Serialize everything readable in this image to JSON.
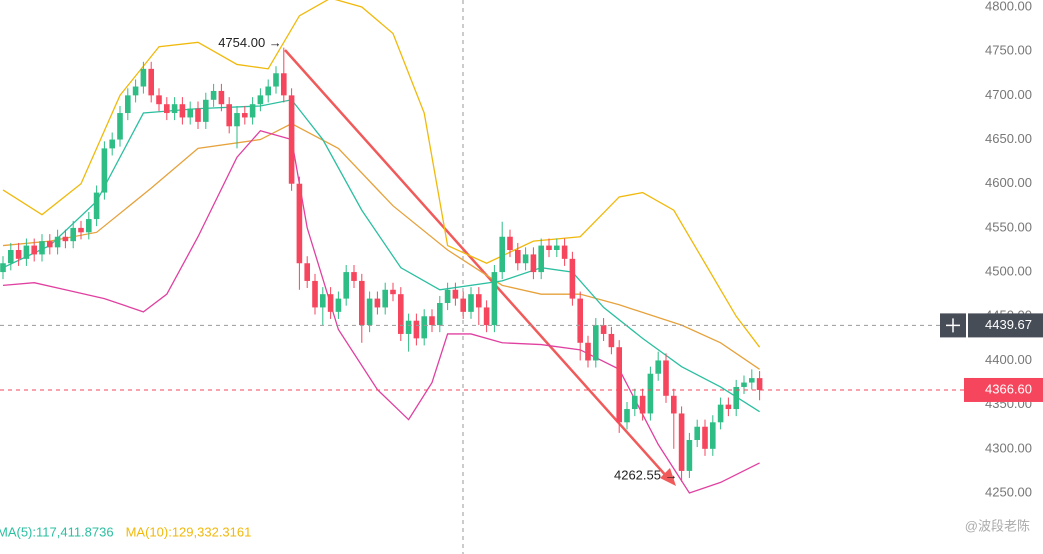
{
  "chart_data": {
    "type": "candlestick",
    "up_color": "#2ebd85",
    "down_color": "#f6465d",
    "ylim": [
      4250,
      4800
    ],
    "yticks": [
      {
        "value": 4250,
        "label": "4250.00"
      },
      {
        "value": 4300,
        "label": "4300.00"
      },
      {
        "value": 4350,
        "label": "4350.00"
      },
      {
        "value": 4400,
        "label": "4400.00"
      },
      {
        "value": 4450,
        "label": "4450.00"
      },
      {
        "value": 4500,
        "label": "4500.00"
      },
      {
        "value": 4550,
        "label": "4550.00"
      },
      {
        "value": 4600,
        "label": "4600.00"
      },
      {
        "value": 4650,
        "label": "4650.00"
      },
      {
        "value": 4700,
        "label": "4700.00"
      },
      {
        "value": 4750,
        "label": "4750.00"
      },
      {
        "value": 4800,
        "label": "4800.00"
      }
    ],
    "candles": [
      [
        4500,
        4518,
        4492,
        4510
      ],
      [
        4510,
        4533,
        4502,
        4525
      ],
      [
        4525,
        4533,
        4507,
        4515
      ],
      [
        4515,
        4538,
        4507,
        4530
      ],
      [
        4530,
        4538,
        4512,
        4520
      ],
      [
        4520,
        4543,
        4512,
        4535
      ],
      [
        4535,
        4543,
        4520,
        4528
      ],
      [
        4528,
        4548,
        4520,
        4540
      ],
      [
        4540,
        4548,
        4527,
        4535
      ],
      [
        4535,
        4558,
        4527,
        4550
      ],
      [
        4550,
        4558,
        4537,
        4545
      ],
      [
        4545,
        4568,
        4537,
        4560
      ],
      [
        4560,
        4598,
        4552,
        4590
      ],
      [
        4590,
        4648,
        4582,
        4640
      ],
      [
        4640,
        4658,
        4632,
        4650
      ],
      [
        4650,
        4688,
        4642,
        4680
      ],
      [
        4680,
        4708,
        4672,
        4700
      ],
      [
        4700,
        4718,
        4692,
        4710
      ],
      [
        4710,
        4738,
        4702,
        4730
      ],
      [
        4730,
        4738,
        4692,
        4700
      ],
      [
        4700,
        4708,
        4682,
        4690
      ],
      [
        4690,
        4698,
        4672,
        4680
      ],
      [
        4680,
        4698,
        4672,
        4690
      ],
      [
        4690,
        4698,
        4667,
        4675
      ],
      [
        4675,
        4693,
        4667,
        4685
      ],
      [
        4685,
        4693,
        4662,
        4670
      ],
      [
        4670,
        4703,
        4662,
        4695
      ],
      [
        4695,
        4713,
        4687,
        4705
      ],
      [
        4705,
        4713,
        4682,
        4690
      ],
      [
        4690,
        4698,
        4657,
        4665
      ],
      [
        4665,
        4688,
        4640,
        4680
      ],
      [
        4680,
        4688,
        4667,
        4675
      ],
      [
        4675,
        4698,
        4667,
        4690
      ],
      [
        4690,
        4708,
        4682,
        4700
      ],
      [
        4700,
        4718,
        4692,
        4710
      ],
      [
        4710,
        4733,
        4702,
        4725
      ],
      [
        4725,
        4754,
        4692,
        4700
      ],
      [
        4700,
        4708,
        4592,
        4600
      ],
      [
        4600,
        4608,
        4480,
        4510
      ],
      [
        4510,
        4518,
        4482,
        4490
      ],
      [
        4490,
        4498,
        4452,
        4460
      ],
      [
        4460,
        4483,
        4440,
        4475
      ],
      [
        4475,
        4483,
        4447,
        4455
      ],
      [
        4455,
        4478,
        4447,
        4470
      ],
      [
        4470,
        4508,
        4462,
        4500
      ],
      [
        4500,
        4508,
        4482,
        4490
      ],
      [
        4490,
        4498,
        4420,
        4440
      ],
      [
        4440,
        4478,
        4432,
        4470
      ],
      [
        4470,
        4478,
        4452,
        4460
      ],
      [
        4460,
        4488,
        4452,
        4480
      ],
      [
        4480,
        4488,
        4467,
        4475
      ],
      [
        4475,
        4483,
        4422,
        4430
      ],
      [
        4430,
        4453,
        4410,
        4445
      ],
      [
        4445,
        4453,
        4417,
        4425
      ],
      [
        4425,
        4458,
        4417,
        4450
      ],
      [
        4450,
        4458,
        4432,
        4440
      ],
      [
        4440,
        4473,
        4432,
        4465
      ],
      [
        4465,
        4488,
        4457,
        4480
      ],
      [
        4480,
        4488,
        4462,
        4470
      ],
      [
        4470,
        4478,
        4447,
        4455
      ],
      [
        4455,
        4483,
        4447,
        4475
      ],
      [
        4475,
        4483,
        4440,
        4460
      ],
      [
        4460,
        4468,
        4432,
        4440
      ],
      [
        4440,
        4508,
        4432,
        4500
      ],
      [
        4500,
        4557,
        4492,
        4540
      ],
      [
        4540,
        4548,
        4517,
        4525
      ],
      [
        4525,
        4533,
        4502,
        4510
      ],
      [
        4510,
        4528,
        4502,
        4520
      ],
      [
        4520,
        4528,
        4492,
        4500
      ],
      [
        4500,
        4538,
        4492,
        4530
      ],
      [
        4530,
        4538,
        4517,
        4525
      ],
      [
        4525,
        4538,
        4517,
        4530
      ],
      [
        4530,
        4538,
        4507,
        4515
      ],
      [
        4515,
        4523,
        4462,
        4470
      ],
      [
        4470,
        4478,
        4400,
        4420
      ],
      [
        4420,
        4428,
        4392,
        4400
      ],
      [
        4400,
        4448,
        4392,
        4440
      ],
      [
        4440,
        4448,
        4422,
        4430
      ],
      [
        4430,
        4438,
        4407,
        4415
      ],
      [
        4415,
        4423,
        4318,
        4330
      ],
      [
        4330,
        4353,
        4322,
        4345
      ],
      [
        4345,
        4368,
        4337,
        4360
      ],
      [
        4360,
        4368,
        4332,
        4340
      ],
      [
        4340,
        4393,
        4332,
        4385
      ],
      [
        4385,
        4410,
        4377,
        4400
      ],
      [
        4400,
        4408,
        4352,
        4360
      ],
      [
        4360,
        4368,
        4300,
        4340
      ],
      [
        4340,
        4348,
        4262.55,
        4275
      ],
      [
        4275,
        4318,
        4267,
        4310
      ],
      [
        4310,
        4333,
        4302,
        4325
      ],
      [
        4325,
        4333,
        4292,
        4300
      ],
      [
        4300,
        4338,
        4292,
        4330
      ],
      [
        4330,
        4358,
        4322,
        4350
      ],
      [
        4350,
        4358,
        4337,
        4345
      ],
      [
        4345,
        4378,
        4337,
        4370
      ],
      [
        4370,
        4383,
        4362,
        4375
      ],
      [
        4375,
        4390,
        4367,
        4380
      ],
      [
        4380,
        4388,
        4355,
        4366.6
      ]
    ],
    "lines": [
      {
        "color": "#f0b90b",
        "x": [
          0,
          5,
          10,
          15,
          20,
          25,
          30,
          34,
          38,
          42,
          46,
          50,
          54,
          57,
          62,
          68,
          74,
          79,
          82,
          86,
          90,
          94,
          97
        ],
        "values": [
          4593,
          4565,
          4600,
          4700,
          4755,
          4760,
          4735,
          4730,
          4790,
          4810,
          4800,
          4770,
          4680,
          4530,
          4510,
          4535,
          4540,
          4585,
          4590,
          4570,
          4510,
          4450,
          4415
        ]
      },
      {
        "color": "#e6a23c",
        "x": [
          0,
          6,
          12,
          19,
          25,
          33,
          37,
          43,
          50,
          57,
          64,
          69,
          74,
          79,
          87,
          92,
          97
        ],
        "values": [
          4530,
          4535,
          4545,
          4595,
          4640,
          4650,
          4668,
          4640,
          4575,
          4525,
          4485,
          4475,
          4475,
          4463,
          4440,
          4420,
          4390
        ]
      },
      {
        "color": "#2bbfa0",
        "x": [
          0,
          6,
          12,
          18,
          25,
          33,
          37,
          41,
          46,
          51,
          56,
          64,
          69,
          73,
          77,
          82,
          87,
          92,
          97
        ],
        "values": [
          4505,
          4530,
          4580,
          4680,
          4685,
          4688,
          4695,
          4650,
          4570,
          4505,
          4480,
          4490,
          4505,
          4500,
          4460,
          4425,
          4393,
          4370,
          4342
        ]
      },
      {
        "color": "#e040a0",
        "x": [
          0,
          4,
          8,
          13,
          18,
          21,
          25,
          30,
          33,
          37,
          39,
          43,
          48,
          52,
          55,
          57,
          60,
          64,
          69,
          74,
          79,
          84,
          88,
          92,
          97
        ],
        "values": [
          4485,
          4488,
          4480,
          4470,
          4455,
          4475,
          4540,
          4630,
          4660,
          4650,
          4550,
          4435,
          4367,
          4333,
          4375,
          4430,
          4430,
          4420,
          4418,
          4412,
          4390,
          4305,
          4250,
          4262,
          4284
        ]
      }
    ],
    "high_label": {
      "value": 4754,
      "label": "4754.00 →"
    },
    "low_label": {
      "value": 4262.55,
      "label": "4262.55 →"
    },
    "crosshair": {
      "value": 4439.67,
      "label": "4439.67"
    },
    "last_price": {
      "value": 4366.6,
      "label": "4366.60"
    },
    "legend": [
      {
        "name": "MA(5):117,411.8736",
        "color": "#2bbfa0"
      },
      {
        "name": "MA(10):129,332.3161",
        "color": "#f0b90b"
      }
    ],
    "watermark": "@波段老陈"
  }
}
